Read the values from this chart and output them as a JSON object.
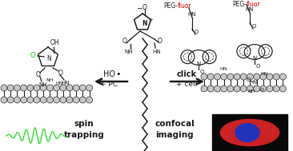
{
  "bg_color": "#ffffff",
  "fig_width": 3.66,
  "fig_height": 1.89,
  "dpi": 100,
  "dark": "#1a1a1a",
  "green": "#22cc22",
  "red_peg": "#cc0000",
  "spin_green": "#44dd44",
  "mem_fill": "#c8c8c8",
  "conf_red": "#cc2222",
  "conf_blue": "#2233bb",
  "conf_bg": "#080808",
  "spin_trap_label": "spin\ntrapping",
  "confocal_label": "confocal\nimaging",
  "click_label": "click",
  "ho_label": "HO",
  "pc_label": "+ PC",
  "cell_label": "+ cell",
  "peg_text": "PEG-",
  "fluor_text": "fluor"
}
